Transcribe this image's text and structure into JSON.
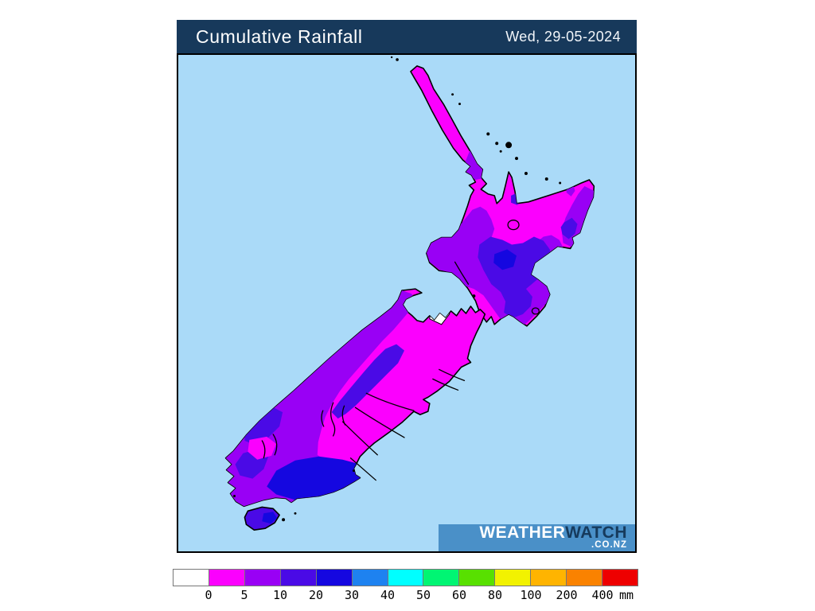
{
  "header": {
    "title": "Cumulative Rainfall",
    "date": "Wed, 29-05-2024",
    "bg": "#17395B"
  },
  "logo": {
    "brand_part1": "WEATHER",
    "brand_part2": "WATCH",
    "suffix": ".CO.NZ",
    "bg": "#4A90C8"
  },
  "palette": {
    "ocean": "#AADAF8",
    "coastline": "#000000",
    "rain_0_5_magenta": "#FB00FE",
    "rain_5_10_purple": "#9900F5",
    "rain_10_20_blueviolet": "#4A0AE6",
    "rain_20_30_blue": "#1507E0",
    "rain_none_white": "#FFFFFF"
  },
  "legend": {
    "unit": "mm",
    "box_colors": [
      "#FFFFFF",
      "#FB00FE",
      "#9900F5",
      "#4A0AE6",
      "#1507E0",
      "#1E82F0",
      "#00FFFF",
      "#00F573",
      "#58E000",
      "#F2F200",
      "#FFB400",
      "#FA8200",
      "#EE0000"
    ],
    "tick_labels": [
      "0",
      "5",
      "10",
      "20",
      "30",
      "40",
      "50",
      "60",
      "80",
      "100",
      "200",
      "400"
    ]
  }
}
